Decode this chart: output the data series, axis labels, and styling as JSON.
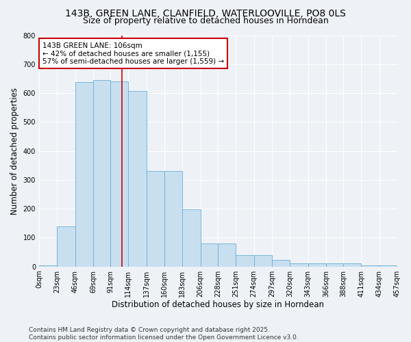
{
  "title_line1": "143B, GREEN LANE, CLANFIELD, WATERLOOVILLE, PO8 0LS",
  "title_line2": "Size of property relative to detached houses in Horndean",
  "xlabel": "Distribution of detached houses by size in Horndean",
  "ylabel": "Number of detached properties",
  "footnote": "Contains HM Land Registry data © Crown copyright and database right 2025.\nContains public sector information licensed under the Open Government Licence v3.0.",
  "annotation_title": "143B GREEN LANE: 106sqm",
  "annotation_line2": "← 42% of detached houses are smaller (1,155)",
  "annotation_line3": "57% of semi-detached houses are larger (1,559) →",
  "bar_color": "#c8dff0",
  "bar_edge_color": "#6aaed6",
  "vline_color": "#cc0000",
  "vline_x": 106,
  "bin_edges": [
    0,
    23,
    46,
    69,
    91,
    114,
    137,
    160,
    183,
    206,
    228,
    251,
    274,
    297,
    320,
    343,
    366,
    388,
    411,
    434,
    457
  ],
  "bar_heights": [
    5,
    140,
    638,
    645,
    640,
    608,
    330,
    330,
    197,
    80,
    80,
    40,
    40,
    22,
    10,
    10,
    10,
    10,
    5,
    3,
    1
  ],
  "ylim": [
    0,
    800
  ],
  "yticks": [
    0,
    100,
    200,
    300,
    400,
    500,
    600,
    700,
    800
  ],
  "background_color": "#eef2f7",
  "grid_color": "#ffffff",
  "title_fontsize": 10,
  "subtitle_fontsize": 9,
  "axis_label_fontsize": 8.5,
  "tick_fontsize": 7,
  "annotation_fontsize": 7.5,
  "footnote_fontsize": 6.5
}
